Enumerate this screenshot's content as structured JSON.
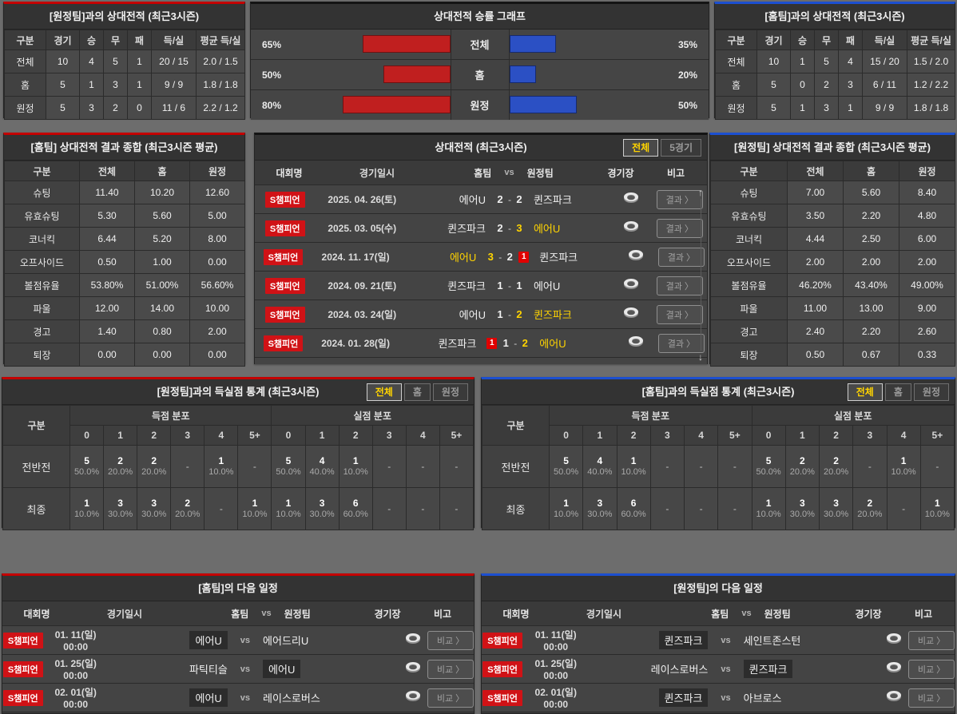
{
  "colors": {
    "accent_red": "#c40000",
    "accent_blue": "#1c4fd0",
    "bar_red": "#c01f1f",
    "bar_blue": "#2b50c4",
    "win_yellow": "#ffd400",
    "league_badge_red": "#d01216"
  },
  "vs_away_record": {
    "title": "[원정팀]과의 상대전적 (최근3시즌)",
    "headers": [
      "구분",
      "경기",
      "승",
      "무",
      "패",
      "득/실",
      "평균 득/실"
    ],
    "rows": [
      {
        "label": "전체",
        "values": [
          "10",
          "4",
          "5",
          "1",
          "20 / 15",
          "2.0 / 1.5"
        ]
      },
      {
        "label": "홈",
        "values": [
          "5",
          "1",
          "3",
          "1",
          "9 / 9",
          "1.8 / 1.8"
        ]
      },
      {
        "label": "원정",
        "values": [
          "5",
          "3",
          "2",
          "0",
          "11 / 6",
          "2.2 / 1.2"
        ]
      }
    ]
  },
  "win_graph": {
    "title": "상대전적 승률 그래프",
    "rows": [
      {
        "label": "전체",
        "left_text": "65%",
        "left_pct": 65,
        "right_text": "35%",
        "right_pct": 35
      },
      {
        "label": "홈",
        "left_text": "50%",
        "left_pct": 50,
        "right_text": "20%",
        "right_pct": 20
      },
      {
        "label": "원정",
        "left_text": "80%",
        "left_pct": 80,
        "right_text": "50%",
        "right_pct": 50
      }
    ]
  },
  "chart_data": {
    "type": "bar",
    "title": "상대전적 승률 그래프",
    "categories": [
      "전체",
      "홈",
      "원정"
    ],
    "series": [
      {
        "name": "홈팀(red)",
        "values": [
          65,
          50,
          80
        ]
      },
      {
        "name": "원정팀(blue)",
        "values": [
          35,
          20,
          50
        ]
      }
    ],
    "unit": "%",
    "xlim": [
      0,
      100
    ],
    "legend": "none",
    "orientation": "horizontal-mirrored"
  },
  "vs_home_record": {
    "title": "[홈팀]과의 상대전적 (최근3시즌)",
    "headers": [
      "구분",
      "경기",
      "승",
      "무",
      "패",
      "득/실",
      "평균 득/실"
    ],
    "rows": [
      {
        "label": "전체",
        "values": [
          "10",
          "1",
          "5",
          "4",
          "15 / 20",
          "1.5 / 2.0"
        ]
      },
      {
        "label": "홈",
        "values": [
          "5",
          "0",
          "2",
          "3",
          "6 / 11",
          "1.2 / 2.2"
        ]
      },
      {
        "label": "원정",
        "values": [
          "5",
          "1",
          "3",
          "1",
          "9 / 9",
          "1.8 / 1.8"
        ]
      }
    ]
  },
  "home_summary": {
    "title": "[홈팀] 상대전적 결과 종합 (최근3시즌 평균)",
    "headers": [
      "구분",
      "전체",
      "홈",
      "원정"
    ],
    "rows": [
      {
        "label": "슈팅",
        "values": [
          "11.40",
          "10.20",
          "12.60"
        ]
      },
      {
        "label": "유효슈팅",
        "values": [
          "5.30",
          "5.60",
          "5.00"
        ]
      },
      {
        "label": "코너킥",
        "values": [
          "6.44",
          "5.20",
          "8.00"
        ]
      },
      {
        "label": "오프사이드",
        "values": [
          "0.50",
          "1.00",
          "0.00"
        ]
      },
      {
        "label": "볼점유율",
        "values": [
          "53.80%",
          "51.00%",
          "56.60%"
        ]
      },
      {
        "label": "파울",
        "values": [
          "12.00",
          "14.00",
          "10.00"
        ]
      },
      {
        "label": "경고",
        "values": [
          "1.40",
          "0.80",
          "2.00"
        ]
      },
      {
        "label": "퇴장",
        "values": [
          "0.00",
          "0.00",
          "0.00"
        ]
      }
    ]
  },
  "away_summary": {
    "title": "[원정팀] 상대전적 결과 종합 (최근3시즌 평균)",
    "headers": [
      "구분",
      "전체",
      "홈",
      "원정"
    ],
    "rows": [
      {
        "label": "슈팅",
        "values": [
          "7.00",
          "5.60",
          "8.40"
        ]
      },
      {
        "label": "유효슈팅",
        "values": [
          "3.50",
          "2.20",
          "4.80"
        ]
      },
      {
        "label": "코너킥",
        "values": [
          "4.44",
          "2.50",
          "6.00"
        ]
      },
      {
        "label": "오프사이드",
        "values": [
          "2.00",
          "2.00",
          "2.00"
        ]
      },
      {
        "label": "볼점유율",
        "values": [
          "46.20%",
          "43.40%",
          "49.00%"
        ]
      },
      {
        "label": "파울",
        "values": [
          "11.00",
          "13.00",
          "9.00"
        ]
      },
      {
        "label": "경고",
        "values": [
          "2.40",
          "2.20",
          "2.60"
        ]
      },
      {
        "label": "퇴장",
        "values": [
          "0.50",
          "0.67",
          "0.33"
        ]
      }
    ]
  },
  "h2h": {
    "title": "상대전적 (최근3시즌)",
    "tabs": [
      {
        "label": "전체",
        "active": true
      },
      {
        "label": "5경기",
        "active": false
      }
    ],
    "headers": {
      "league": "대회명",
      "date": "경기일시",
      "home": "홈팀",
      "vs": "vs",
      "away": "원정팀",
      "venue": "경기장",
      "note": "비고"
    },
    "result_button": "결과 〉",
    "rows": [
      {
        "league": "S챔피언",
        "date": "2025. 04. 26(토)",
        "home": "에어U",
        "score_home": "2",
        "score_away": "2",
        "away": "퀸즈파크",
        "home_win": false,
        "away_win": false,
        "home_red": false,
        "away_red": false
      },
      {
        "league": "S챔피언",
        "date": "2025. 03. 05(수)",
        "home": "퀸즈파크",
        "score_home": "2",
        "score_away": "3",
        "away": "에어U",
        "home_win": false,
        "away_win": true,
        "home_red": false,
        "away_red": false
      },
      {
        "league": "S챔피언",
        "date": "2024. 11. 17(일)",
        "home": "에어U",
        "score_home": "3",
        "score_away": "2",
        "away": "퀸즈파크",
        "home_win": true,
        "away_win": false,
        "home_red": false,
        "away_red": true
      },
      {
        "league": "S챔피언",
        "date": "2024. 09. 21(토)",
        "home": "퀸즈파크",
        "score_home": "1",
        "score_away": "1",
        "away": "에어U",
        "home_win": false,
        "away_win": false,
        "home_red": false,
        "away_red": false
      },
      {
        "league": "S챔피언",
        "date": "2024. 03. 24(일)",
        "home": "에어U",
        "score_home": "1",
        "score_away": "2",
        "away": "퀸즈파크",
        "home_win": false,
        "away_win": true,
        "home_red": false,
        "away_red": false
      },
      {
        "league": "S챔피언",
        "date": "2024. 01. 28(일)",
        "home": "퀸즈파크",
        "score_home": "1",
        "score_away": "2",
        "away": "에어U",
        "home_win": false,
        "away_win": true,
        "home_red": true,
        "away_red": false
      }
    ],
    "partial_row_league": "S챔피언"
  },
  "goal_stats_away": {
    "title": "[원정팀]과의 득실점 통계 (최근3시즌)",
    "tabs": [
      {
        "label": "전체",
        "active": true
      },
      {
        "label": "홈",
        "active": false
      },
      {
        "label": "원정",
        "active": false
      }
    ],
    "corner": "구분",
    "group_scored": "득점 분포",
    "group_conceded": "실점 분포",
    "cols": [
      "0",
      "1",
      "2",
      "3",
      "4",
      "5+"
    ],
    "rows": [
      {
        "label": "전반전",
        "scored": [
          [
            "5",
            "50.0%"
          ],
          [
            "2",
            "20.0%"
          ],
          [
            "2",
            "20.0%"
          ],
          null,
          [
            "1",
            "10.0%"
          ],
          null
        ],
        "conceded": [
          [
            "5",
            "50.0%"
          ],
          [
            "4",
            "40.0%"
          ],
          [
            "1",
            "10.0%"
          ],
          null,
          null,
          null
        ]
      },
      {
        "label": "최종",
        "scored": [
          [
            "1",
            "10.0%"
          ],
          [
            "3",
            "30.0%"
          ],
          [
            "3",
            "30.0%"
          ],
          [
            "2",
            "20.0%"
          ],
          null,
          [
            "1",
            "10.0%"
          ]
        ],
        "conceded": [
          [
            "1",
            "10.0%"
          ],
          [
            "3",
            "30.0%"
          ],
          [
            "6",
            "60.0%"
          ],
          null,
          null,
          null
        ]
      }
    ]
  },
  "goal_stats_home": {
    "title": "[홈팀]과의 득실점 통계 (최근3시즌)",
    "tabs": [
      {
        "label": "전체",
        "active": true
      },
      {
        "label": "홈",
        "active": false
      },
      {
        "label": "원정",
        "active": false
      }
    ],
    "corner": "구분",
    "group_scored": "득점 분포",
    "group_conceded": "실점 분포",
    "cols": [
      "0",
      "1",
      "2",
      "3",
      "4",
      "5+"
    ],
    "rows": [
      {
        "label": "전반전",
        "scored": [
          [
            "5",
            "50.0%"
          ],
          [
            "4",
            "40.0%"
          ],
          [
            "1",
            "10.0%"
          ],
          null,
          null,
          null
        ],
        "conceded": [
          [
            "5",
            "50.0%"
          ],
          [
            "2",
            "20.0%"
          ],
          [
            "2",
            "20.0%"
          ],
          null,
          [
            "1",
            "10.0%"
          ],
          null
        ]
      },
      {
        "label": "최종",
        "scored": [
          [
            "1",
            "10.0%"
          ],
          [
            "3",
            "30.0%"
          ],
          [
            "6",
            "60.0%"
          ],
          null,
          null,
          null
        ],
        "conceded": [
          [
            "1",
            "10.0%"
          ],
          [
            "3",
            "30.0%"
          ],
          [
            "3",
            "30.0%"
          ],
          [
            "2",
            "20.0%"
          ],
          null,
          [
            "1",
            "10.0%"
          ]
        ]
      }
    ]
  },
  "home_schedule": {
    "title": "[홈팀]의 다음 일정",
    "headers": {
      "league": "대회명",
      "date": "경기일시",
      "home": "홈팀",
      "vs": "vs",
      "away": "원정팀",
      "venue": "경기장",
      "note": "비고"
    },
    "compare_button": "비교 〉",
    "rows": [
      {
        "league": "S챔피언",
        "date": "01. 11(일) 00:00",
        "home": "에어U",
        "away": "에어드리U",
        "home_hl": true,
        "away_hl": false
      },
      {
        "league": "S챔피언",
        "date": "01. 25(일) 00:00",
        "home": "파틱티슬",
        "away": "에어U",
        "home_hl": false,
        "away_hl": true
      },
      {
        "league": "S챔피언",
        "date": "02. 01(일) 00:00",
        "home": "에어U",
        "away": "레이스로버스",
        "home_hl": true,
        "away_hl": false
      }
    ]
  },
  "away_schedule": {
    "title": "[원정팀]의 다음 일정",
    "headers": {
      "league": "대회명",
      "date": "경기일시",
      "home": "홈팀",
      "vs": "vs",
      "away": "원정팀",
      "venue": "경기장",
      "note": "비고"
    },
    "compare_button": "비교 〉",
    "rows": [
      {
        "league": "S챔피언",
        "date": "01. 11(일) 00:00",
        "home": "퀸즈파크",
        "away": "세인트존스턴",
        "home_hl": true,
        "away_hl": false
      },
      {
        "league": "S챔피언",
        "date": "01. 25(일) 00:00",
        "home": "레이스로버스",
        "away": "퀸즈파크",
        "home_hl": false,
        "away_hl": true
      },
      {
        "league": "S챔피언",
        "date": "02. 01(일) 00:00",
        "home": "퀸즈파크",
        "away": "아브로스",
        "home_hl": true,
        "away_hl": false
      }
    ]
  }
}
